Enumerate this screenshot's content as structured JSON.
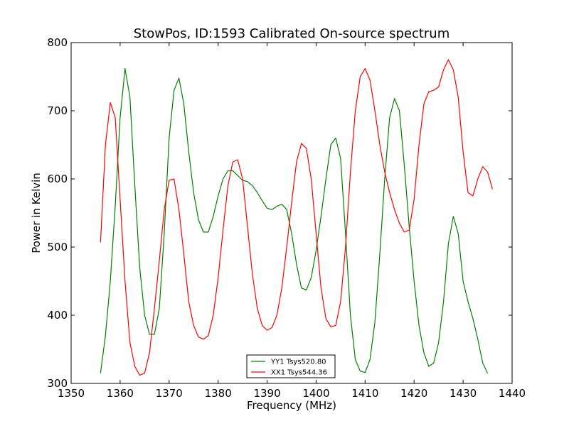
{
  "chart_data": {
    "type": "line",
    "title": "StowPos, ID:1593 Calibrated On-source spectrum",
    "xlabel": "Frequency (MHz)",
    "ylabel": "Power in Kelvin",
    "xlim": [
      1350,
      1440
    ],
    "ylim": [
      300,
      800
    ],
    "xticks": [
      1350,
      1360,
      1370,
      1380,
      1390,
      1400,
      1410,
      1420,
      1430,
      1440
    ],
    "yticks": [
      300,
      400,
      500,
      600,
      700,
      800
    ],
    "grid": false,
    "legend_position": "lower-center",
    "series": [
      {
        "name": "YY1 Tsys520.80",
        "color": "#008000",
        "points": [
          [
            1356,
            315
          ],
          [
            1357,
            370
          ],
          [
            1358,
            450
          ],
          [
            1359,
            560
          ],
          [
            1360,
            690
          ],
          [
            1361,
            762
          ],
          [
            1362,
            720
          ],
          [
            1363,
            590
          ],
          [
            1364,
            470
          ],
          [
            1365,
            400
          ],
          [
            1366,
            372
          ],
          [
            1367,
            372
          ],
          [
            1368,
            410
          ],
          [
            1369,
            520
          ],
          [
            1370,
            660
          ],
          [
            1371,
            730
          ],
          [
            1372,
            748
          ],
          [
            1373,
            710
          ],
          [
            1374,
            640
          ],
          [
            1375,
            580
          ],
          [
            1376,
            540
          ],
          [
            1377,
            522
          ],
          [
            1378,
            522
          ],
          [
            1379,
            545
          ],
          [
            1380,
            575
          ],
          [
            1381,
            600
          ],
          [
            1382,
            612
          ],
          [
            1383,
            612
          ],
          [
            1384,
            605
          ],
          [
            1385,
            598
          ],
          [
            1386,
            596
          ],
          [
            1387,
            590
          ],
          [
            1388,
            580
          ],
          [
            1389,
            568
          ],
          [
            1390,
            557
          ],
          [
            1391,
            555
          ],
          [
            1392,
            560
          ],
          [
            1393,
            563
          ],
          [
            1394,
            555
          ],
          [
            1395,
            520
          ],
          [
            1396,
            475
          ],
          [
            1397,
            440
          ],
          [
            1398,
            437
          ],
          [
            1399,
            455
          ],
          [
            1400,
            495
          ],
          [
            1401,
            545
          ],
          [
            1402,
            600
          ],
          [
            1403,
            650
          ],
          [
            1404,
            660
          ],
          [
            1405,
            630
          ],
          [
            1406,
            520
          ],
          [
            1407,
            400
          ],
          [
            1408,
            335
          ],
          [
            1409,
            318
          ],
          [
            1410,
            316
          ],
          [
            1411,
            335
          ],
          [
            1412,
            390
          ],
          [
            1413,
            490
          ],
          [
            1414,
            600
          ],
          [
            1415,
            690
          ],
          [
            1416,
            718
          ],
          [
            1417,
            700
          ],
          [
            1418,
            620
          ],
          [
            1419,
            530
          ],
          [
            1420,
            450
          ],
          [
            1421,
            385
          ],
          [
            1422,
            345
          ],
          [
            1423,
            325
          ],
          [
            1424,
            330
          ],
          [
            1425,
            360
          ],
          [
            1426,
            420
          ],
          [
            1427,
            505
          ],
          [
            1428,
            545
          ],
          [
            1429,
            520
          ],
          [
            1430,
            450
          ],
          [
            1431,
            420
          ],
          [
            1432,
            395
          ],
          [
            1433,
            365
          ],
          [
            1434,
            330
          ],
          [
            1435,
            315
          ]
        ]
      },
      {
        "name": "XX1 Tsys544.36",
        "color": "#ff0000",
        "points": [
          [
            1356,
            507
          ],
          [
            1357,
            650
          ],
          [
            1358,
            712
          ],
          [
            1359,
            690
          ],
          [
            1360,
            570
          ],
          [
            1361,
            450
          ],
          [
            1362,
            360
          ],
          [
            1363,
            325
          ],
          [
            1364,
            312
          ],
          [
            1365,
            315
          ],
          [
            1366,
            345
          ],
          [
            1367,
            410
          ],
          [
            1368,
            480
          ],
          [
            1369,
            555
          ],
          [
            1370,
            598
          ],
          [
            1371,
            600
          ],
          [
            1372,
            555
          ],
          [
            1373,
            490
          ],
          [
            1374,
            420
          ],
          [
            1375,
            385
          ],
          [
            1376,
            368
          ],
          [
            1377,
            365
          ],
          [
            1378,
            370
          ],
          [
            1379,
            400
          ],
          [
            1380,
            455
          ],
          [
            1381,
            525
          ],
          [
            1382,
            590
          ],
          [
            1383,
            625
          ],
          [
            1384,
            628
          ],
          [
            1385,
            600
          ],
          [
            1386,
            530
          ],
          [
            1387,
            460
          ],
          [
            1388,
            410
          ],
          [
            1389,
            385
          ],
          [
            1390,
            378
          ],
          [
            1391,
            382
          ],
          [
            1392,
            400
          ],
          [
            1393,
            440
          ],
          [
            1394,
            500
          ],
          [
            1395,
            565
          ],
          [
            1396,
            625
          ],
          [
            1397,
            652
          ],
          [
            1398,
            645
          ],
          [
            1399,
            600
          ],
          [
            1400,
            520
          ],
          [
            1401,
            440
          ],
          [
            1402,
            395
          ],
          [
            1403,
            383
          ],
          [
            1404,
            385
          ],
          [
            1405,
            420
          ],
          [
            1406,
            500
          ],
          [
            1407,
            610
          ],
          [
            1408,
            700
          ],
          [
            1409,
            750
          ],
          [
            1410,
            762
          ],
          [
            1411,
            745
          ],
          [
            1412,
            700
          ],
          [
            1413,
            650
          ],
          [
            1414,
            610
          ],
          [
            1415,
            580
          ],
          [
            1416,
            555
          ],
          [
            1417,
            535
          ],
          [
            1418,
            522
          ],
          [
            1419,
            525
          ],
          [
            1420,
            570
          ],
          [
            1421,
            650
          ],
          [
            1422,
            710
          ],
          [
            1423,
            728
          ],
          [
            1424,
            730
          ],
          [
            1425,
            735
          ],
          [
            1426,
            760
          ],
          [
            1427,
            775
          ],
          [
            1428,
            760
          ],
          [
            1429,
            720
          ],
          [
            1430,
            640
          ],
          [
            1431,
            580
          ],
          [
            1432,
            575
          ],
          [
            1433,
            600
          ],
          [
            1434,
            618
          ],
          [
            1435,
            610
          ],
          [
            1436,
            585
          ]
        ]
      }
    ]
  }
}
